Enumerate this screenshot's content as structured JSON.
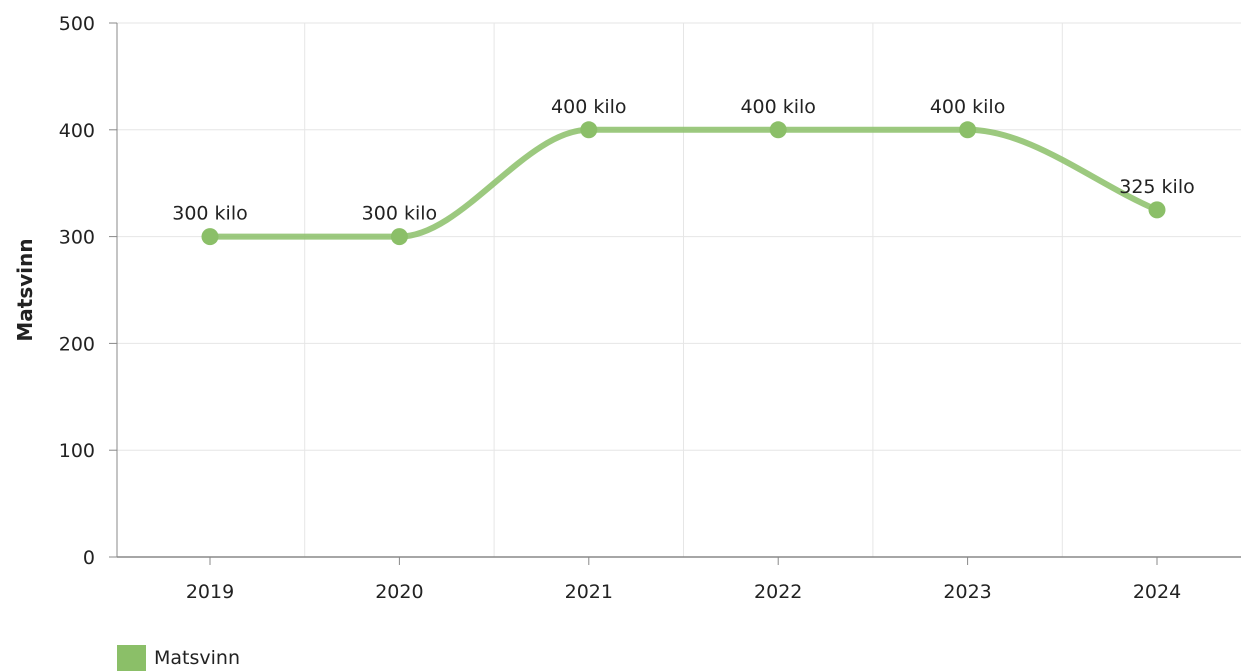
{
  "chart_data": {
    "type": "line",
    "categories": [
      "2019",
      "2020",
      "2021",
      "2022",
      "2023",
      "2024"
    ],
    "series": [
      {
        "name": "Matsvinn",
        "values": [
          300,
          300,
          400,
          400,
          400,
          325
        ],
        "color": "#8bbf68"
      }
    ],
    "data_labels": [
      "300 kilo",
      "300 kilo",
      "400 kilo",
      "400 kilo",
      "400 kilo",
      "325 kilo"
    ],
    "ylabel": "Matsvinn",
    "xlabel": "",
    "ylim": [
      0,
      500
    ],
    "yticks": [
      0,
      100,
      200,
      300,
      400,
      500
    ],
    "grid": true,
    "legend_position": "bottom-left",
    "smooth": true
  },
  "legend": {
    "label": "Matsvinn",
    "color": "#8bbf68"
  }
}
